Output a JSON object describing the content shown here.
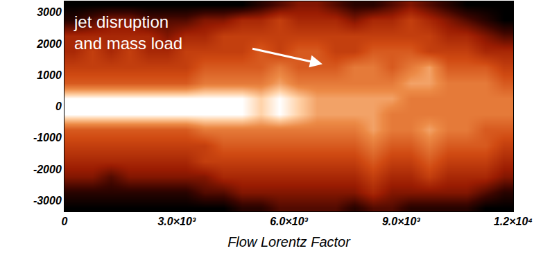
{
  "chart_data": {
    "type": "heatmap",
    "x_label": "Flow Lorentz Factor",
    "annotation": [
      "jet disruption",
      "and mass load"
    ],
    "xlim": [
      0,
      12000
    ],
    "ylim": [
      -3350,
      3350
    ],
    "xticks": [
      0,
      {
        "value": 3000,
        "label": "3.0×10³"
      },
      {
        "value": 6000,
        "label": "6.0×10³"
      },
      {
        "value": 9000,
        "label": "9.0×10³"
      },
      {
        "value": 12000,
        "label": "1.2×10⁴"
      }
    ],
    "yticks": [
      -3000,
      -2000,
      -1000,
      0,
      1000,
      2000,
      3000
    ],
    "zlim": [
      0,
      1
    ],
    "x": [
      250,
      750,
      1250,
      1750,
      2250,
      2750,
      3250,
      3750,
      4250,
      4750,
      5250,
      5750,
      6250,
      6750,
      7250,
      7750,
      8250,
      8750,
      9250,
      9750,
      10250,
      10750,
      11250,
      11750
    ],
    "y": [
      -3250,
      -2750,
      -2250,
      -1750,
      -1250,
      -750,
      -250,
      250,
      750,
      1250,
      1750,
      2250,
      2750,
      3250
    ],
    "z": [
      [
        0,
        0,
        0,
        0,
        0,
        0,
        0,
        0,
        0,
        0.1,
        0.1,
        0.2,
        0.2,
        0.2,
        0.2,
        0.1,
        0.2,
        0.2,
        0.1,
        0.1,
        0.1,
        0.1,
        0,
        0
      ],
      [
        0.1,
        0.1,
        0.1,
        0.1,
        0.1,
        0.1,
        0.1,
        0.2,
        0.2,
        0.3,
        0.3,
        0.3,
        0.3,
        0.3,
        0.3,
        0.3,
        0.4,
        0.3,
        0.3,
        0.3,
        0.3,
        0.3,
        0.2,
        0.1
      ],
      [
        0.3,
        0.3,
        0.2,
        0.3,
        0.3,
        0.3,
        0.3,
        0.3,
        0.4,
        0.4,
        0.4,
        0.4,
        0.4,
        0.4,
        0.4,
        0.4,
        0.5,
        0.4,
        0.4,
        0.5,
        0.4,
        0.4,
        0.4,
        0.3
      ],
      [
        0.4,
        0.4,
        0.4,
        0.4,
        0.4,
        0.4,
        0.4,
        0.5,
        0.5,
        0.5,
        0.5,
        0.5,
        0.5,
        0.5,
        0.5,
        0.5,
        0.6,
        0.5,
        0.5,
        0.6,
        0.5,
        0.5,
        0.5,
        0.4
      ],
      [
        0.5,
        0.5,
        0.5,
        0.5,
        0.5,
        0.5,
        0.5,
        0.5,
        0.6,
        0.6,
        0.6,
        0.6,
        0.6,
        0.6,
        0.6,
        0.6,
        0.7,
        0.6,
        0.6,
        0.7,
        0.6,
        0.6,
        0.6,
        0.5
      ],
      [
        0.6,
        0.6,
        0.6,
        0.6,
        0.6,
        0.6,
        0.6,
        0.7,
        0.7,
        0.7,
        0.7,
        0.7,
        0.7,
        0.7,
        0.7,
        0.7,
        0.8,
        0.7,
        0.7,
        0.8,
        0.7,
        0.7,
        0.6,
        0.6
      ],
      [
        1,
        1,
        1,
        1,
        1,
        1,
        1,
        1,
        1,
        1,
        0.9,
        1,
        0.9,
        0.8,
        0.8,
        0.8,
        0.8,
        0.7,
        0.7,
        0.7,
        0.7,
        0.7,
        0.7,
        0.7
      ],
      [
        1,
        1,
        1,
        1,
        1,
        1,
        1,
        1,
        1,
        1,
        0.9,
        1,
        0.9,
        0.8,
        0.8,
        0.8,
        0.8,
        0.8,
        0.7,
        0.7,
        0.7,
        0.7,
        0.7,
        0.7
      ],
      [
        0.6,
        0.6,
        0.6,
        0.6,
        0.6,
        0.6,
        0.6,
        0.7,
        0.7,
        0.7,
        0.7,
        0.8,
        0.7,
        0.7,
        0.7,
        0.7,
        0.7,
        0.7,
        0.8,
        0.8,
        0.7,
        0.7,
        0.7,
        0.6
      ],
      [
        0.5,
        0.5,
        0.5,
        0.5,
        0.5,
        0.5,
        0.5,
        0.6,
        0.6,
        0.6,
        0.6,
        0.7,
        0.6,
        0.6,
        0.6,
        0.7,
        0.7,
        0.6,
        0.7,
        0.8,
        0.6,
        0.6,
        0.6,
        0.5
      ],
      [
        0.4,
        0.5,
        0.4,
        0.5,
        0.4,
        0.4,
        0.5,
        0.5,
        0.5,
        0.5,
        0.6,
        0.5,
        0.6,
        0.6,
        0.5,
        0.5,
        0.6,
        0.6,
        0.6,
        0.5,
        0.5,
        0.5,
        0.4,
        0.4
      ],
      [
        0.4,
        0.4,
        0.4,
        0.4,
        0.4,
        0.3,
        0.4,
        0.4,
        0.5,
        0.5,
        0.5,
        0.5,
        0.5,
        0.5,
        0.5,
        0.5,
        0.5,
        0.5,
        0.5,
        0.5,
        0.4,
        0.4,
        0.3,
        0.2
      ],
      [
        0.1,
        0.2,
        0.3,
        0.3,
        0.2,
        0.2,
        0.2,
        0.3,
        0.3,
        0.4,
        0.4,
        0.5,
        0.4,
        0.4,
        0.4,
        0.3,
        0.4,
        0.4,
        0.5,
        0.4,
        0.3,
        0.2,
        0.1,
        0
      ],
      [
        0,
        0,
        0,
        0,
        0,
        0,
        0,
        0,
        0,
        0,
        0.1,
        0.2,
        0.3,
        0.3,
        0.2,
        0.1,
        0.1,
        0.2,
        0.3,
        0.2,
        0.1,
        0,
        0,
        0
      ]
    ]
  }
}
